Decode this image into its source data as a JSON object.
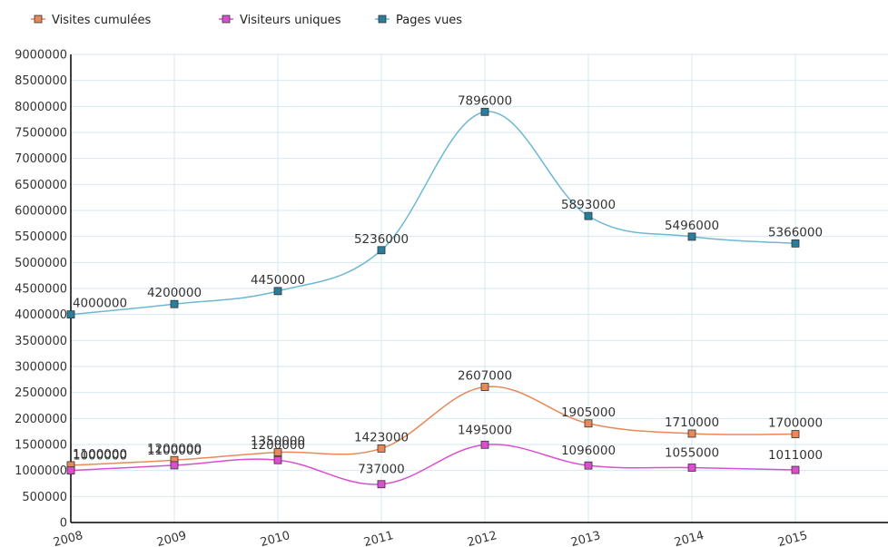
{
  "chart_data": {
    "type": "line",
    "categories": [
      "2008",
      "2009",
      "2010",
      "2011",
      "2012",
      "2013",
      "2014",
      "2015"
    ],
    "series": [
      {
        "name": "Visites cumulées",
        "color": "#e8895a",
        "marker_color": "#e8895a",
        "values": [
          1100000,
          1200000,
          1350000,
          1423000,
          2607000,
          1905000,
          1710000,
          1700000
        ],
        "labels": [
          "1100000",
          "1200000",
          "1350000",
          "1423000",
          "2607000",
          "1905000",
          "1710000",
          "1700000"
        ]
      },
      {
        "name": "Visiteurs uniques",
        "color": "#d94fd0",
        "marker_color": "#d94fd0",
        "values": [
          1000000,
          1100000,
          1200000,
          737000,
          1495000,
          1096000,
          1055000,
          1011000
        ],
        "labels": [
          "1000000",
          "1100000",
          "1200000",
          "737000",
          "1495000",
          "1096000",
          "1055000",
          "1011000"
        ]
      },
      {
        "name": "Pages vues",
        "color": "#6cb8d3",
        "marker_color": "#2a7e9c",
        "values": [
          4000000,
          4200000,
          4450000,
          5236000,
          7896000,
          5893000,
          5496000,
          5366000
        ],
        "labels": [
          "4000000",
          "4200000",
          "4450000",
          "5236000",
          "7896000",
          "5893000",
          "5496000",
          "5366000"
        ]
      }
    ],
    "ylim": [
      0,
      9000000
    ],
    "yticks": [
      "0",
      "500000",
      "1000000",
      "1500000",
      "2000000",
      "2500000",
      "3000000",
      "3500000",
      "4000000",
      "4500000",
      "5000000",
      "5500000",
      "6000000",
      "6500000",
      "7000000",
      "7500000",
      "8000000",
      "8500000",
      "9000000"
    ],
    "ytick_values": [
      0,
      500000,
      1000000,
      1500000,
      2000000,
      2500000,
      3000000,
      3500000,
      4000000,
      4500000,
      5000000,
      5500000,
      6000000,
      6500000,
      7000000,
      7500000,
      8000000,
      8500000,
      9000000
    ],
    "grid": true,
    "legend_position": "top-left",
    "xtick_rotation_deg": -15,
    "smooth": true
  }
}
